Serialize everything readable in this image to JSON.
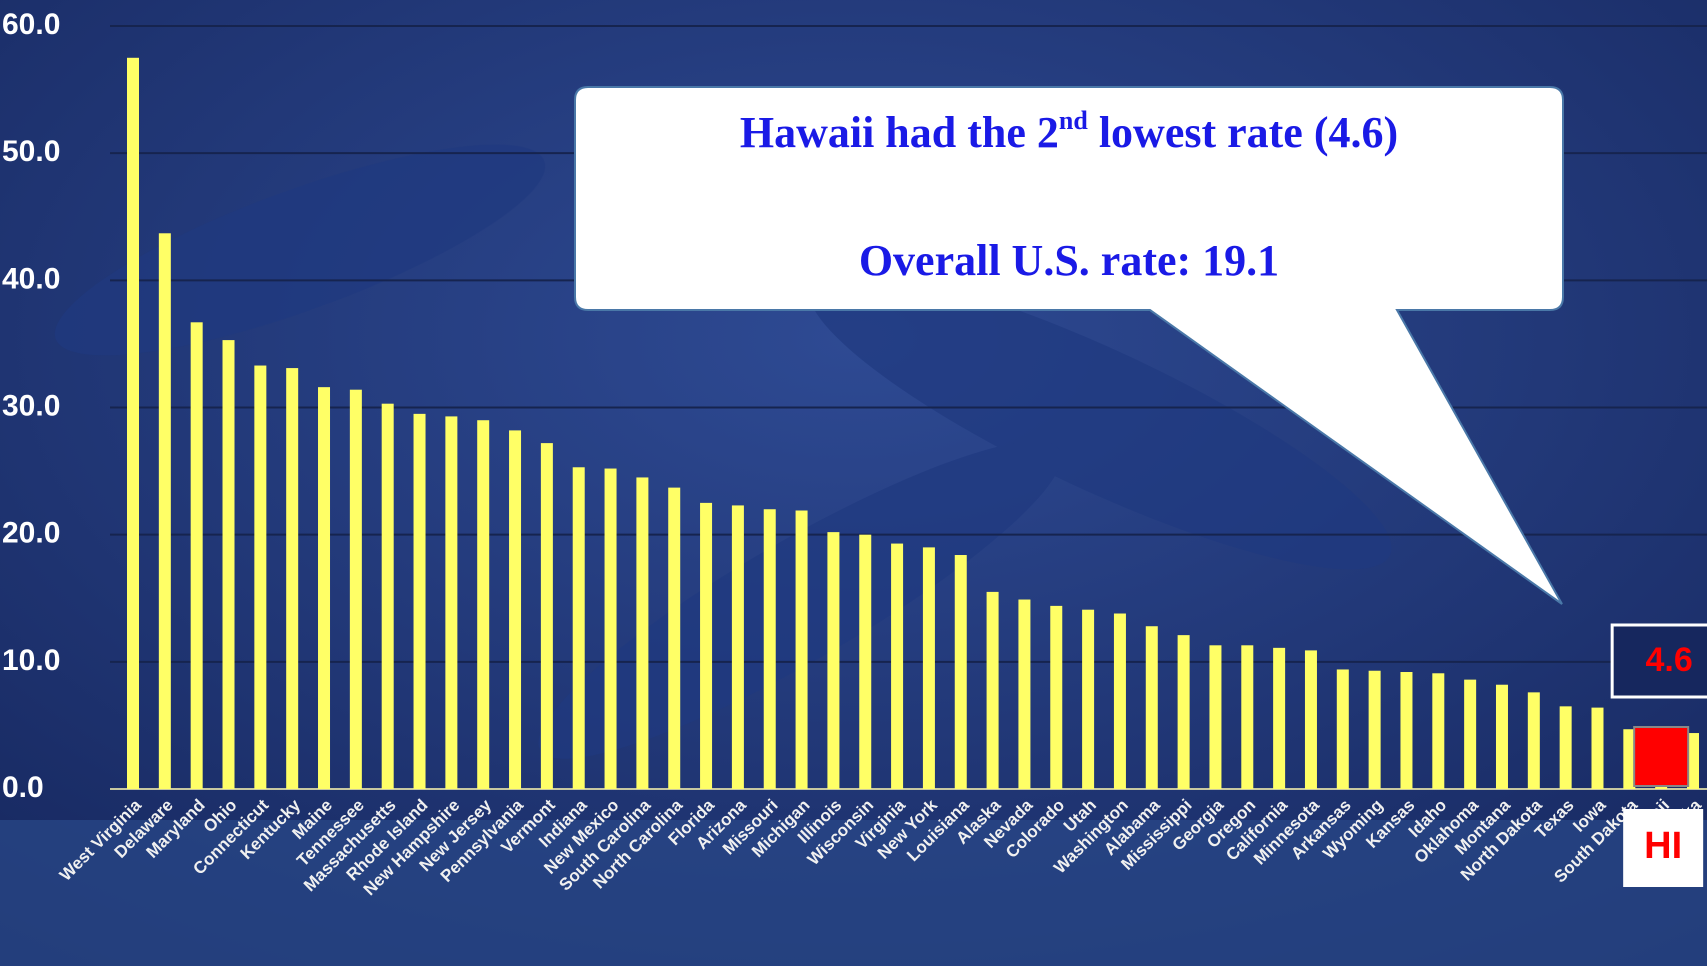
{
  "chart_data": {
    "type": "bar",
    "categories": [
      "West Virginia",
      "Delaware",
      "Maryland",
      "Ohio",
      "Connecticut",
      "Kentucky",
      "Maine",
      "Tennessee",
      "Massachusetts",
      "Rhode Island",
      "New Hampshire",
      "New Jersey",
      "Pennsylvania",
      "Vermont",
      "Indiana",
      "New Mexico",
      "South Carolina",
      "North Carolina",
      "Florida",
      "Arizona",
      "Missouri",
      "Michigan",
      "Illinois",
      "Wisconsin",
      "Virginia",
      "New York",
      "Louisiana",
      "Alaska",
      "Nevada",
      "Colorado",
      "Utah",
      "Washington",
      "Alabama",
      "Mississippi",
      "Georgia",
      "Oregon",
      "California",
      "Minnesota",
      "Arkansas",
      "Wyoming",
      "Kansas",
      "Idaho",
      "Oklahoma",
      "Montana",
      "North Dakota",
      "Texas",
      "Iowa",
      "South Dakota",
      "Hawaii",
      "Nebraska"
    ],
    "values": [
      57.5,
      43.7,
      36.7,
      35.3,
      33.3,
      33.1,
      31.6,
      31.4,
      30.3,
      29.5,
      29.3,
      29.0,
      28.2,
      27.2,
      25.3,
      25.2,
      24.5,
      23.7,
      22.5,
      22.3,
      22.0,
      21.9,
      20.2,
      20.0,
      19.3,
      19.0,
      18.4,
      15.5,
      14.9,
      14.4,
      14.1,
      13.8,
      12.8,
      12.1,
      11.3,
      11.3,
      11.1,
      10.9,
      9.4,
      9.3,
      9.2,
      9.1,
      8.6,
      8.2,
      7.6,
      6.5,
      6.4,
      4.7,
      4.6,
      4.4
    ],
    "color": "#ffff66",
    "highlight_color": "#ff0000",
    "ylim": [
      0,
      60
    ],
    "yticks": [
      {
        "value": 0,
        "label": "0.0"
      },
      {
        "value": 10,
        "label": "10.0"
      },
      {
        "value": 20,
        "label": "20.0"
      },
      {
        "value": 30,
        "label": "30.0"
      },
      {
        "value": 40,
        "label": "40.0"
      },
      {
        "value": 50,
        "label": "50.0"
      },
      {
        "value": 60,
        "label": "60.0"
      }
    ],
    "grid": true,
    "annotation": {
      "line1": [
        "Hawaii had the 2",
        "nd",
        " lowest rate (4.6)"
      ],
      "line2": "Overall U.S. rate: 19.1"
    },
    "highlight_label": "HI"
  }
}
